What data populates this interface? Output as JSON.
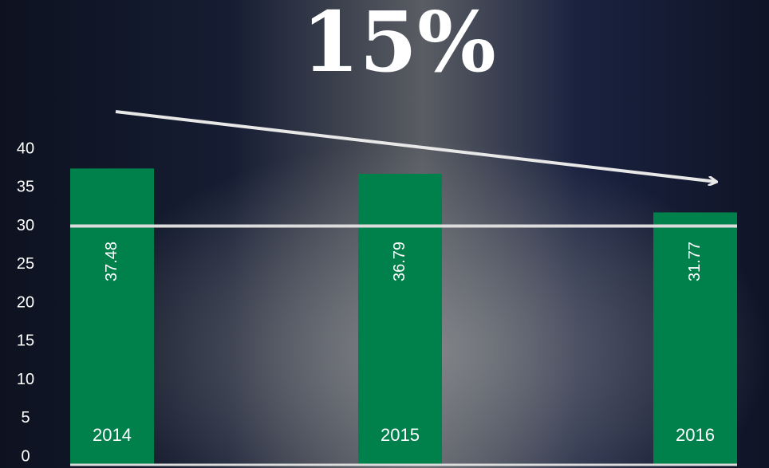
{
  "chart_data": {
    "type": "bar",
    "title": "15%",
    "categories": [
      "2014",
      "2015",
      "2016"
    ],
    "values": [
      37.48,
      36.79,
      31.77
    ],
    "color": "#00804a",
    "ylim": [
      0,
      40
    ],
    "yticks": [
      0,
      5,
      10,
      15,
      20,
      25,
      30,
      35,
      40
    ],
    "hline": 30,
    "grid": false
  }
}
